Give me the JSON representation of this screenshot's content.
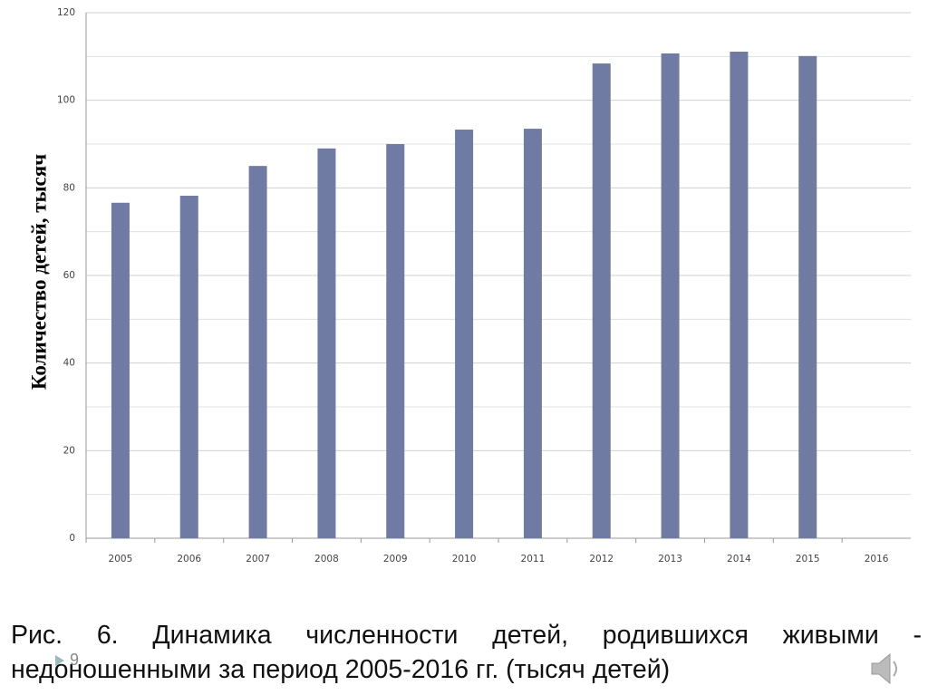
{
  "chart_data": {
    "type": "bar",
    "y_axis_label": "Количество детей, тысяч",
    "categories": [
      "2005",
      "2006",
      "2007",
      "2008",
      "2009",
      "2010",
      "2011",
      "2012",
      "2013",
      "2014",
      "2015",
      "2016"
    ],
    "values": [
      76.6,
      78.2,
      85.0,
      89.0,
      90.0,
      93.3,
      93.5,
      108.4,
      110.7,
      111.1,
      110.1,
      null
    ],
    "color": "#6f7ba3",
    "ylim": [
      0,
      120
    ],
    "yticks": [
      0,
      20,
      40,
      60,
      80,
      100,
      120
    ],
    "grid": true
  },
  "caption": "Рис. 6. Динамика численности детей, родившихся живыми - недоношенными за период 2005-2016 гг. (тысяч детей)",
  "page_number": "9"
}
